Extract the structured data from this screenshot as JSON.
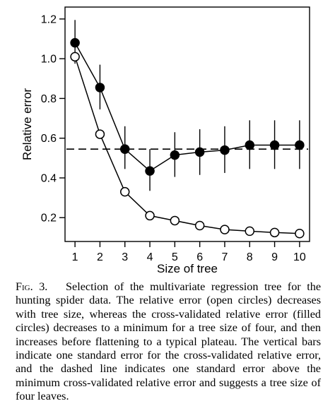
{
  "chart_data": {
    "type": "line",
    "xlabel": "Size of tree",
    "ylabel": "Relative error",
    "x": [
      1,
      2,
      3,
      4,
      5,
      6,
      7,
      8,
      9,
      10
    ],
    "x_tick_labels": [
      "1",
      "2",
      "3",
      "4",
      "5",
      "6",
      "7",
      "8",
      "9",
      "10"
    ],
    "y_ticks": [
      0.2,
      0.4,
      0.6,
      0.8,
      1.0,
      1.2
    ],
    "y_tick_labels": [
      "0.2",
      "0.4",
      "0.6",
      "0.8",
      "1.0",
      "1.2"
    ],
    "xlim": [
      0.6,
      10.4
    ],
    "ylim": [
      0.08,
      1.26
    ],
    "series": [
      {
        "marker": "open-circle",
        "values": [
          1.01,
          0.62,
          0.33,
          0.21,
          0.185,
          0.16,
          0.14,
          0.132,
          0.125,
          0.12
        ]
      },
      {
        "marker": "filled-circle",
        "values": [
          1.08,
          0.855,
          0.545,
          0.435,
          0.515,
          0.53,
          0.54,
          0.565,
          0.565,
          0.565
        ],
        "error_low": [
          0.975,
          0.745,
          0.445,
          0.335,
          0.405,
          0.415,
          0.425,
          0.445,
          0.445,
          0.445
        ],
        "error_high": [
          1.195,
          0.97,
          0.66,
          0.545,
          0.63,
          0.645,
          0.66,
          0.69,
          0.69,
          0.69
        ]
      }
    ],
    "reference_line": {
      "y": 0.545,
      "style": "dashed"
    }
  },
  "caption": {
    "label": "Fig. 3.",
    "text": "Selection of the multivariate regression tree for the hunting spider data. The relative error (open circles) decreases with tree size, whereas the cross-validated relative error (filled circles) decreases to a minimum for a tree size of four, and then increases before flattening to a typical plateau. The vertical bars indicate one standard error for the cross-validated relative error, and the dashed line indicates one standard error above the minimum cross-validated relative error and suggests a tree size of four leaves."
  }
}
